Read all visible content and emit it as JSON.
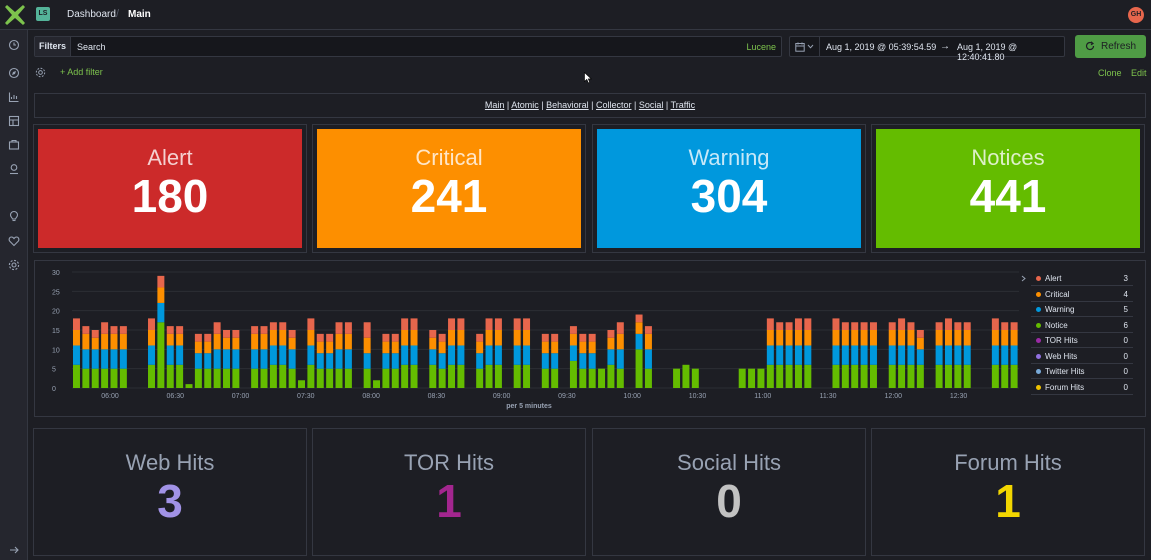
{
  "header": {
    "space_initials": "LS",
    "breadcrumb_parent": "Dashboard",
    "breadcrumb_current": "Main",
    "user_initials": "GH"
  },
  "sidenav": {
    "icons": [
      "clock-icon",
      "compass-icon",
      "visualize-icon",
      "dashboard-icon",
      "canvas-icon",
      "maps-icon",
      "apm-icon",
      "uptime-icon",
      "management-icon"
    ]
  },
  "query": {
    "filters_label": "Filters",
    "search_placeholder": "Search",
    "language_label": "Lucene",
    "date_start": "Aug 1, 2019 @ 05:39:54.59",
    "date_arrow": "→",
    "date_end": "Aug 1, 2019 @ 12:40:41.80",
    "refresh_label": "Refresh",
    "add_filter_label": "+ Add filter",
    "clone_label": "Clone",
    "edit_label": "Edit"
  },
  "nav_links": [
    "Main",
    "Atomic",
    "Behavioral",
    "Collector",
    "Social",
    "Traffic"
  ],
  "metrics": [
    {
      "label": "Alert",
      "value": "180",
      "color": "#cc2a2a"
    },
    {
      "label": "Critical",
      "value": "241",
      "color": "#fd8f00"
    },
    {
      "label": "Warning",
      "value": "304",
      "color": "#0098dd"
    },
    {
      "label": "Notices",
      "value": "441",
      "color": "#64bc00"
    }
  ],
  "chart_data": {
    "type": "bar",
    "stacked": true,
    "xlabel": "per 5 minutes",
    "ylim": [
      0,
      30
    ],
    "yticks": [
      0,
      5,
      10,
      15,
      20,
      25,
      30
    ],
    "xticks": [
      "06:00",
      "06:30",
      "07:00",
      "07:30",
      "08:00",
      "08:30",
      "09:00",
      "09:30",
      "10:00",
      "10:30",
      "11:00",
      "11:30",
      "12:00",
      "12:30"
    ],
    "grid": true,
    "legend_position": "right",
    "series": [
      {
        "name": "Alert",
        "color": "#e7664c",
        "values": [
          3,
          2,
          2,
          3,
          2,
          2,
          0,
          0,
          3,
          3,
          2,
          2,
          0,
          2,
          2,
          3,
          2,
          2,
          0,
          2,
          2,
          2,
          2,
          2,
          0,
          3,
          2,
          2,
          3,
          3,
          0,
          4,
          0,
          2,
          2,
          3,
          3,
          0,
          2,
          2,
          3,
          3,
          0,
          2,
          3,
          3,
          0,
          3,
          3,
          0,
          2,
          2,
          0,
          2,
          2,
          2,
          0,
          2,
          3,
          0,
          2,
          2,
          0,
          0,
          0,
          0,
          0,
          0,
          0,
          0,
          0,
          0,
          0,
          0,
          3,
          2,
          2,
          3,
          3,
          0,
          0,
          3,
          2,
          2,
          2,
          2,
          0,
          2,
          3,
          2,
          2,
          0,
          2,
          3,
          2,
          2,
          0,
          0,
          3,
          2,
          2
        ]
      },
      {
        "name": "Critical",
        "color": "#fd8f00",
        "values": [
          4,
          4,
          3,
          4,
          4,
          4,
          0,
          0,
          4,
          4,
          3,
          3,
          0,
          3,
          3,
          4,
          3,
          3,
          0,
          4,
          4,
          4,
          4,
          3,
          0,
          4,
          3,
          3,
          4,
          4,
          0,
          4,
          0,
          3,
          3,
          4,
          4,
          0,
          3,
          3,
          4,
          4,
          0,
          3,
          4,
          4,
          0,
          4,
          4,
          0,
          3,
          3,
          0,
          3,
          3,
          3,
          0,
          3,
          4,
          0,
          3,
          4,
          0,
          0,
          0,
          0,
          0,
          0,
          0,
          0,
          0,
          0,
          0,
          0,
          4,
          4,
          4,
          4,
          4,
          0,
          0,
          4,
          4,
          4,
          4,
          4,
          0,
          4,
          4,
          4,
          3,
          0,
          4,
          4,
          4,
          4,
          0,
          0,
          4,
          4,
          4
        ]
      },
      {
        "name": "Warning",
        "color": "#0098dd",
        "values": [
          5,
          5,
          5,
          5,
          5,
          5,
          0,
          0,
          5,
          5,
          5,
          5,
          0,
          4,
          4,
          5,
          5,
          5,
          0,
          5,
          5,
          5,
          5,
          5,
          0,
          5,
          4,
          4,
          5,
          5,
          0,
          4,
          0,
          4,
          4,
          5,
          5,
          0,
          4,
          4,
          5,
          5,
          0,
          4,
          5,
          5,
          0,
          5,
          5,
          0,
          4,
          4,
          0,
          4,
          4,
          4,
          0,
          4,
          5,
          0,
          4,
          5,
          0,
          0,
          0,
          0,
          0,
          0,
          0,
          0,
          0,
          0,
          0,
          0,
          5,
          5,
          5,
          5,
          5,
          0,
          0,
          5,
          5,
          5,
          5,
          5,
          0,
          5,
          5,
          5,
          4,
          0,
          5,
          5,
          5,
          5,
          0,
          0,
          5,
          5,
          5
        ]
      },
      {
        "name": "Notice",
        "color": "#64bc00",
        "values": [
          6,
          5,
          5,
          5,
          5,
          5,
          0,
          0,
          6,
          17,
          6,
          6,
          1,
          5,
          5,
          5,
          5,
          5,
          0,
          5,
          5,
          6,
          6,
          5,
          2,
          6,
          5,
          5,
          5,
          5,
          0,
          5,
          2,
          5,
          5,
          6,
          6,
          0,
          6,
          5,
          6,
          6,
          0,
          5,
          6,
          6,
          0,
          6,
          6,
          0,
          5,
          5,
          0,
          7,
          5,
          5,
          5,
          6,
          5,
          0,
          10,
          5,
          0,
          0,
          5,
          6,
          5,
          0,
          0,
          0,
          0,
          5,
          5,
          5,
          6,
          6,
          6,
          6,
          6,
          0,
          0,
          6,
          6,
          6,
          6,
          6,
          0,
          6,
          6,
          6,
          6,
          0,
          6,
          6,
          6,
          6,
          0,
          0,
          6,
          6,
          6
        ]
      },
      {
        "name": "TOR Hits",
        "color": "#9b2aa5",
        "values": [
          0,
          0,
          0,
          0,
          0,
          0,
          0,
          0,
          0,
          0,
          0,
          0,
          0,
          0,
          0,
          0,
          0,
          0,
          0,
          0,
          0,
          0,
          0,
          0,
          0,
          0,
          0,
          0,
          0,
          0,
          0,
          0,
          0,
          0,
          0,
          0,
          0,
          0,
          0,
          0,
          0,
          0,
          0,
          0,
          0,
          0,
          0,
          0,
          0,
          0,
          0,
          0,
          0,
          0,
          0,
          0,
          0,
          0,
          0,
          0,
          0,
          0,
          0,
          0,
          0,
          0,
          0,
          0,
          0,
          0,
          0,
          0,
          0,
          0,
          0,
          0,
          0,
          0,
          0,
          0,
          0,
          0,
          0,
          0,
          0,
          0,
          0,
          0,
          0,
          0,
          0,
          0,
          0,
          0,
          0,
          0,
          0,
          0,
          0,
          0,
          0
        ]
      },
      {
        "name": "Web Hits",
        "color": "#9170e0",
        "values": [
          0,
          0,
          0,
          0,
          0,
          0,
          0,
          0,
          0,
          0,
          0,
          0,
          0,
          0,
          0,
          0,
          0,
          0,
          0,
          0,
          0,
          0,
          0,
          0,
          0,
          0,
          0,
          0,
          0,
          0,
          0,
          0,
          0,
          0,
          0,
          0,
          0,
          0,
          0,
          0,
          0,
          0,
          0,
          0,
          0,
          0,
          0,
          0,
          0,
          0,
          0,
          0,
          0,
          0,
          0,
          0,
          0,
          0,
          0,
          0,
          0,
          0,
          0,
          0,
          0,
          0,
          0,
          0,
          0,
          0,
          0,
          0,
          0,
          0,
          0,
          0,
          0,
          0,
          0,
          0,
          0,
          0,
          0,
          0,
          0,
          0,
          0,
          0,
          0,
          0,
          0,
          0,
          0,
          0,
          0,
          0,
          0,
          0,
          0,
          0,
          0
        ]
      },
      {
        "name": "Twitter Hits",
        "color": "#79aad9",
        "values": [
          0,
          0,
          0,
          0,
          0,
          0,
          0,
          0,
          0,
          0,
          0,
          0,
          0,
          0,
          0,
          0,
          0,
          0,
          0,
          0,
          0,
          0,
          0,
          0,
          0,
          0,
          0,
          0,
          0,
          0,
          0,
          0,
          0,
          0,
          0,
          0,
          0,
          0,
          0,
          0,
          0,
          0,
          0,
          0,
          0,
          0,
          0,
          0,
          0,
          0,
          0,
          0,
          0,
          0,
          0,
          0,
          0,
          0,
          0,
          0,
          0,
          0,
          0,
          0,
          0,
          0,
          0,
          0,
          0,
          0,
          0,
          0,
          0,
          0,
          0,
          0,
          0,
          0,
          0,
          0,
          0,
          0,
          0,
          0,
          0,
          0,
          0,
          0,
          0,
          0,
          0,
          0,
          0,
          0,
          0,
          0,
          0,
          0,
          0,
          0,
          0
        ]
      },
      {
        "name": "Forum Hits",
        "color": "#eec200",
        "values": [
          0,
          0,
          0,
          0,
          0,
          0,
          0,
          0,
          0,
          0,
          0,
          0,
          0,
          0,
          0,
          0,
          0,
          0,
          0,
          0,
          0,
          0,
          0,
          0,
          0,
          0,
          0,
          0,
          0,
          0,
          0,
          0,
          0,
          0,
          0,
          0,
          0,
          0,
          0,
          0,
          0,
          0,
          0,
          0,
          0,
          0,
          0,
          0,
          0,
          0,
          0,
          0,
          0,
          0,
          0,
          0,
          0,
          0,
          0,
          0,
          0,
          0,
          0,
          0,
          0,
          0,
          0,
          0,
          0,
          0,
          0,
          0,
          0,
          0,
          0,
          0,
          0,
          0,
          0,
          0,
          0,
          0,
          0,
          0,
          0,
          0,
          0,
          0,
          0,
          0,
          0,
          0,
          0,
          0,
          0,
          0,
          0,
          0,
          0,
          0,
          0
        ]
      }
    ]
  },
  "legend": [
    {
      "name": "Alert",
      "value": "3",
      "color": "#e7664c"
    },
    {
      "name": "Critical",
      "value": "4",
      "color": "#fd8f00"
    },
    {
      "name": "Warning",
      "value": "5",
      "color": "#0098dd"
    },
    {
      "name": "Notice",
      "value": "6",
      "color": "#64bc00"
    },
    {
      "name": "TOR Hits",
      "value": "0",
      "color": "#9b2aa5"
    },
    {
      "name": "Web Hits",
      "value": "0",
      "color": "#9170e0"
    },
    {
      "name": "Twitter Hits",
      "value": "0",
      "color": "#79aad9"
    },
    {
      "name": "Forum Hits",
      "value": "0",
      "color": "#eec200"
    }
  ],
  "hits": [
    {
      "label": "Web Hits",
      "value": "3",
      "color": "#a192e6"
    },
    {
      "label": "TOR Hits",
      "value": "1",
      "color": "#a3268f"
    },
    {
      "label": "Social Hits",
      "value": "0",
      "color": "#c2c2c2"
    },
    {
      "label": "Forum Hits",
      "value": "1",
      "color": "#f2d600"
    }
  ]
}
